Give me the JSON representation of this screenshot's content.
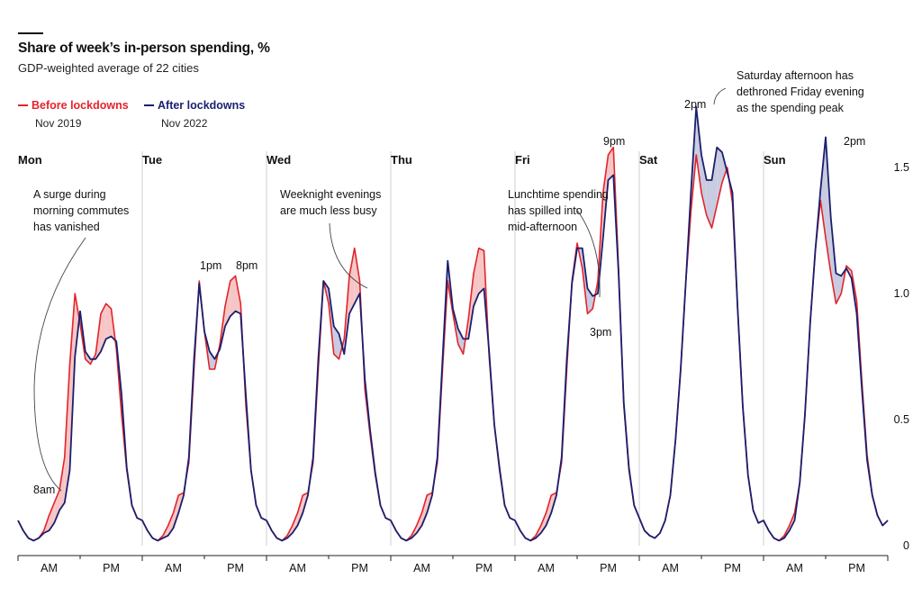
{
  "header": {
    "title": "Share of week’s in-person spending, %",
    "subtitle": "GDP-weighted average of 22 cities"
  },
  "legend": {
    "before": {
      "label": "Before lockdowns",
      "date": "Nov 2019",
      "color": "#e3242b"
    },
    "after": {
      "label": "After lockdowns",
      "date": "Nov 2022",
      "color": "#1a1f6e"
    }
  },
  "colors": {
    "before": "#e3242b",
    "after": "#1a1f6e",
    "fill": "#c9cbe0",
    "redfill": "#f6c6c6"
  },
  "chart_data": {
    "type": "line",
    "title": "Share of week’s in-person spending, %",
    "subtitle": "GDP-weighted average of 22 cities",
    "days": [
      "Mon",
      "Tue",
      "Wed",
      "Thu",
      "Fri",
      "Sat",
      "Sun"
    ],
    "period_labels": [
      "AM",
      "PM"
    ],
    "x_unit": "hour of week (0 = Monday 00:00)",
    "ylim": [
      0,
      1.5
    ],
    "yticks": [
      0,
      0.5,
      1.0,
      1.5
    ],
    "ytick_labels": [
      "0",
      "0.5",
      "1.0",
      "1.5"
    ],
    "grid": false,
    "legend_position": "top-left",
    "series": [
      {
        "name": "Before lockdowns",
        "period": "Nov 2019",
        "values": {
          "Mon": [
            0.1,
            0.06,
            0.03,
            0.02,
            0.03,
            0.06,
            0.12,
            0.17,
            0.22,
            0.35,
            0.72,
            1.0,
            0.88,
            0.74,
            0.72,
            0.76,
            0.92,
            0.96,
            0.94,
            0.78,
            0.52,
            0.3,
            0.16,
            0.11
          ],
          "Tue": [
            0.1,
            0.06,
            0.03,
            0.02,
            0.04,
            0.08,
            0.13,
            0.2,
            0.21,
            0.33,
            0.7,
            1.05,
            0.85,
            0.7,
            0.7,
            0.8,
            0.95,
            1.05,
            1.07,
            0.96,
            0.56,
            0.3,
            0.16,
            0.11
          ],
          "Wed": [
            0.1,
            0.06,
            0.03,
            0.02,
            0.04,
            0.08,
            0.13,
            0.2,
            0.21,
            0.33,
            0.7,
            1.05,
            0.96,
            0.76,
            0.74,
            0.82,
            1.07,
            1.18,
            1.05,
            0.62,
            0.44,
            0.28,
            0.16,
            0.11
          ],
          "Thu": [
            0.1,
            0.06,
            0.03,
            0.02,
            0.04,
            0.08,
            0.13,
            0.2,
            0.21,
            0.33,
            0.7,
            1.05,
            0.92,
            0.8,
            0.76,
            0.9,
            1.08,
            1.18,
            1.17,
            0.75,
            0.48,
            0.3,
            0.16,
            0.11
          ],
          "Fri": [
            0.1,
            0.06,
            0.03,
            0.02,
            0.04,
            0.08,
            0.13,
            0.2,
            0.21,
            0.33,
            0.7,
            1.05,
            1.2,
            1.1,
            0.92,
            0.94,
            1.05,
            1.4,
            1.55,
            1.58,
            1.1,
            0.56,
            0.3,
            0.16
          ],
          "Sat": [
            0.11,
            0.06,
            0.04,
            0.03,
            0.05,
            0.1,
            0.2,
            0.42,
            0.7,
            1.05,
            1.33,
            1.55,
            1.4,
            1.31,
            1.26,
            1.35,
            1.44,
            1.5,
            1.36,
            0.94,
            0.55,
            0.28,
            0.14,
            0.09
          ],
          "Sun": [
            0.1,
            0.06,
            0.03,
            0.02,
            0.04,
            0.08,
            0.13,
            0.25,
            0.52,
            0.88,
            1.17,
            1.37,
            1.22,
            1.08,
            0.96,
            1.0,
            1.11,
            1.09,
            0.97,
            0.65,
            0.36,
            0.2,
            0.12,
            0.08
          ]
        }
      },
      {
        "name": "After lockdowns",
        "period": "Nov 2022",
        "values": {
          "Mon": [
            0.1,
            0.06,
            0.03,
            0.02,
            0.03,
            0.05,
            0.06,
            0.09,
            0.14,
            0.17,
            0.3,
            0.75,
            0.93,
            0.77,
            0.74,
            0.74,
            0.77,
            0.82,
            0.83,
            0.81,
            0.6,
            0.31,
            0.16,
            0.11
          ],
          "Tue": [
            0.1,
            0.06,
            0.03,
            0.02,
            0.03,
            0.04,
            0.07,
            0.13,
            0.2,
            0.35,
            0.74,
            1.04,
            0.85,
            0.77,
            0.74,
            0.78,
            0.87,
            0.91,
            0.93,
            0.92,
            0.6,
            0.3,
            0.16,
            0.11
          ],
          "Wed": [
            0.1,
            0.06,
            0.03,
            0.02,
            0.03,
            0.05,
            0.08,
            0.13,
            0.2,
            0.35,
            0.74,
            1.05,
            1.02,
            0.87,
            0.84,
            0.76,
            0.92,
            0.96,
            1.0,
            0.66,
            0.46,
            0.29,
            0.16,
            0.11
          ],
          "Thu": [
            0.1,
            0.06,
            0.03,
            0.02,
            0.03,
            0.05,
            0.08,
            0.13,
            0.2,
            0.35,
            0.74,
            1.13,
            0.94,
            0.86,
            0.82,
            0.82,
            0.95,
            1.0,
            1.02,
            0.77,
            0.48,
            0.31,
            0.16,
            0.11
          ],
          "Fri": [
            0.1,
            0.06,
            0.03,
            0.02,
            0.03,
            0.05,
            0.08,
            0.13,
            0.2,
            0.35,
            0.74,
            1.04,
            1.18,
            1.18,
            1.02,
            0.99,
            1.0,
            1.22,
            1.45,
            1.47,
            1.08,
            0.57,
            0.31,
            0.16
          ],
          "Sat": [
            0.11,
            0.06,
            0.04,
            0.03,
            0.05,
            0.1,
            0.2,
            0.42,
            0.7,
            1.05,
            1.41,
            1.74,
            1.55,
            1.45,
            1.45,
            1.58,
            1.56,
            1.48,
            1.4,
            0.94,
            0.55,
            0.28,
            0.14,
            0.09
          ],
          "Sun": [
            0.1,
            0.06,
            0.03,
            0.02,
            0.03,
            0.06,
            0.1,
            0.25,
            0.52,
            0.88,
            1.17,
            1.41,
            1.62,
            1.3,
            1.08,
            1.07,
            1.1,
            1.06,
            0.92,
            0.62,
            0.34,
            0.2,
            0.12,
            0.08
          ]
        }
      }
    ],
    "point_labels": [
      {
        "text": "8am",
        "day": "Mon",
        "hour": 8
      },
      {
        "text": "1pm",
        "day": "Tue",
        "hour": 13
      },
      {
        "text": "8pm",
        "day": "Tue",
        "hour": 20
      },
      {
        "text": "3pm",
        "day": "Fri",
        "hour": 15
      },
      {
        "text": "9pm",
        "day": "Fri",
        "hour": 21
      },
      {
        "text": "2pm",
        "day": "Sat",
        "hour": 14
      },
      {
        "text": "2pm",
        "day": "Sun",
        "hour": 14
      }
    ],
    "annotations": [
      {
        "lines": [
          "A surge during",
          "morning commutes",
          "has vanished"
        ],
        "day": "Mon",
        "hour": 8
      },
      {
        "lines": [
          "Weeknight evenings",
          "are much less busy"
        ],
        "day": "Wed",
        "hour": 20
      },
      {
        "lines": [
          "Lunchtime spending",
          "has spilled into",
          "mid-afternoon"
        ],
        "day": "Fri",
        "hour": 15
      },
      {
        "lines": [
          "Saturday afternoon has",
          "dethroned Friday evening",
          "as the spending peak"
        ],
        "day": "Sat",
        "hour": 14
      }
    ]
  }
}
